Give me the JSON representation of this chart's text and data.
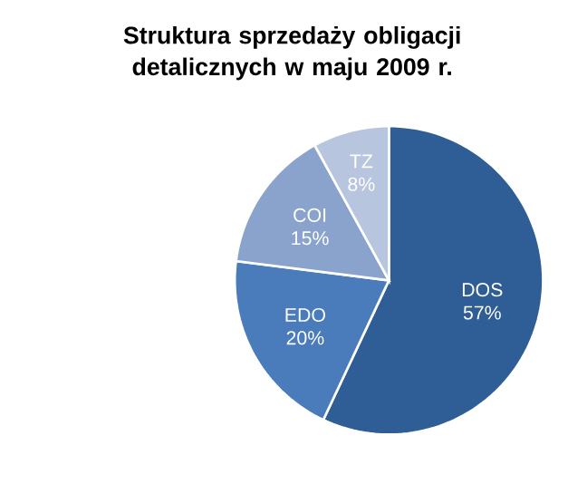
{
  "chart_data": {
    "type": "pie",
    "title": "Struktura sprzedaży obligacji detalicznych w maju 2009 r.",
    "categories": [
      "DOS",
      "EDO",
      "COI",
      "TZ"
    ],
    "values": [
      57,
      20,
      15,
      8
    ],
    "value_labels": [
      "57%",
      "20%",
      "15%",
      "8%"
    ],
    "colors": [
      "#2f5d95",
      "#4a7cbb",
      "#8aa3cc",
      "#b8c5de"
    ]
  }
}
